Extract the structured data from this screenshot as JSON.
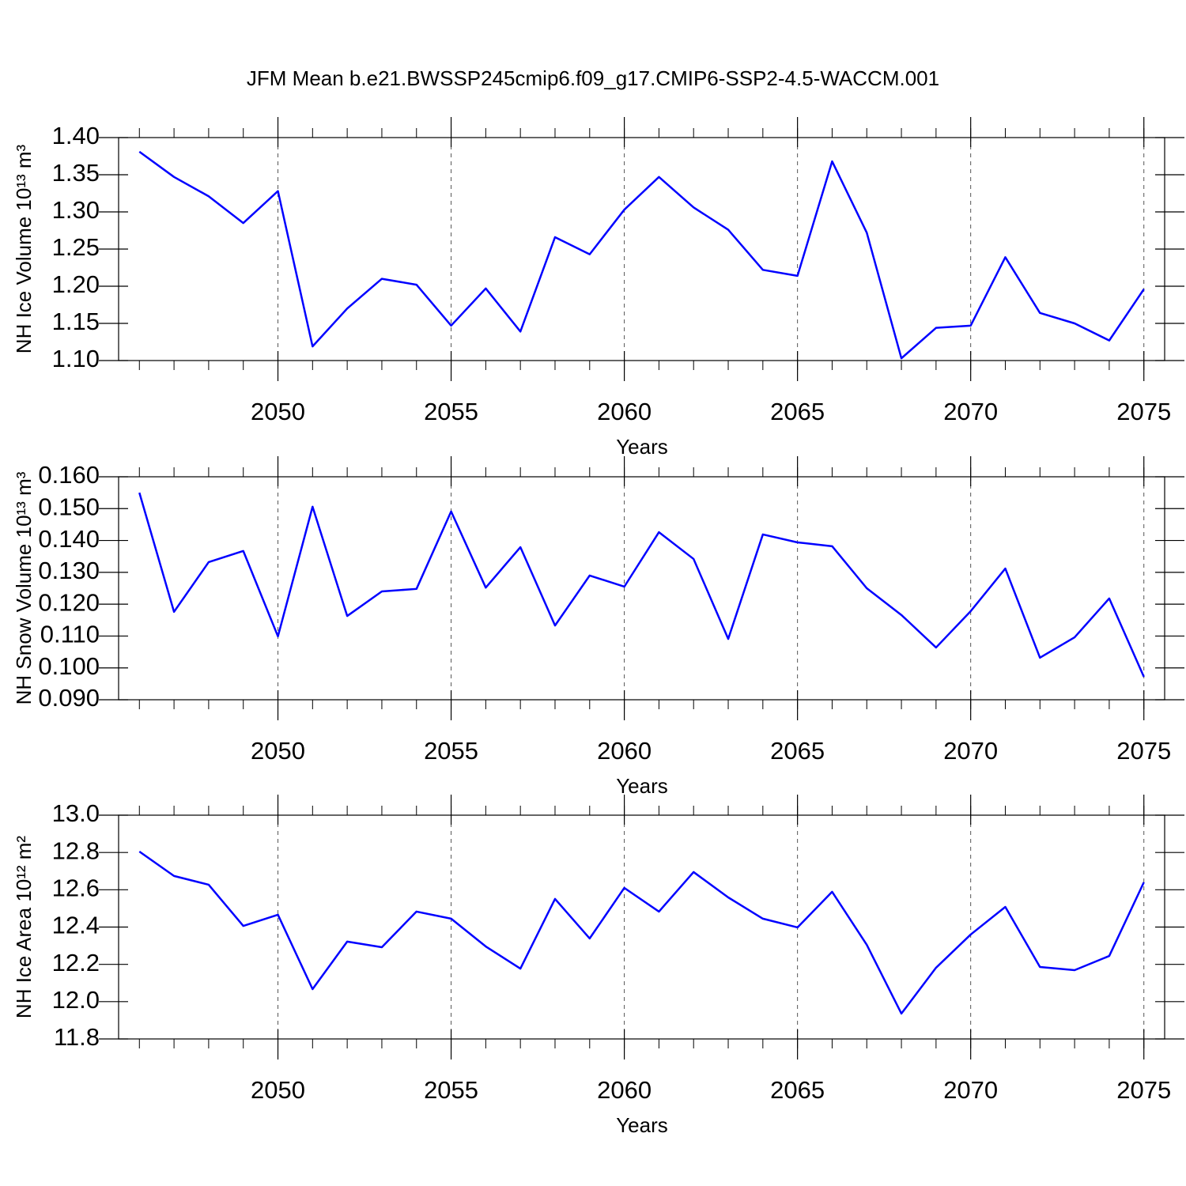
{
  "chart_data": [
    {
      "type": "line",
      "title": "JFM Mean b.e21.BWSSP245cmip6.f09_g17.CMIP6-SSP2-4.5-WACCM.001",
      "ylabel": "NH Ice Volume 10¹³ m³",
      "xlabel": "Years",
      "color": "#0000ff",
      "xgrid": true,
      "x": [
        2046,
        2047,
        2048,
        2049,
        2050,
        2051,
        2052,
        2053,
        2054,
        2055,
        2056,
        2057,
        2058,
        2059,
        2060,
        2061,
        2062,
        2063,
        2064,
        2065,
        2066,
        2067,
        2068,
        2069,
        2070,
        2071,
        2072,
        2073,
        2074,
        2075
      ],
      "values": [
        1.381,
        1.347,
        1.321,
        1.285,
        1.328,
        1.119,
        1.17,
        1.21,
        1.202,
        1.147,
        1.197,
        1.139,
        1.266,
        1.243,
        1.303,
        1.347,
        1.306,
        1.276,
        1.222,
        1.214,
        1.368,
        1.272,
        1.103,
        1.144,
        1.147,
        1.239,
        1.164,
        1.15,
        1.127,
        1.196
      ],
      "xlim": [
        2045.4,
        2075.6
      ],
      "xticks": [
        2050,
        2055,
        2060,
        2065,
        2070,
        2075
      ],
      "ylim": [
        1.1,
        1.4
      ],
      "yticks": [
        {
          "value": 1.1,
          "label": "1.10"
        },
        1.15,
        {
          "value": 1.2,
          "label": "1.20"
        },
        1.25,
        {
          "value": 1.3,
          "label": "1.30"
        },
        1.35,
        {
          "value": 1.4,
          "label": "1.40"
        }
      ]
    },
    {
      "type": "line",
      "ylabel": "NH Snow Volume 10¹³ m³",
      "xlabel": "Years",
      "color": "#0000ff",
      "xgrid": true,
      "x": [
        2046,
        2047,
        2048,
        2049,
        2050,
        2051,
        2052,
        2053,
        2054,
        2055,
        2056,
        2057,
        2058,
        2059,
        2060,
        2061,
        2062,
        2063,
        2064,
        2065,
        2066,
        2067,
        2068,
        2069,
        2070,
        2071,
        2072,
        2073,
        2074,
        2075
      ],
      "values": [
        0.155,
        0.1176,
        0.1332,
        0.1367,
        0.1099,
        0.1506,
        0.1163,
        0.124,
        0.1248,
        0.1491,
        0.1252,
        0.1379,
        0.1133,
        0.129,
        0.1255,
        0.1426,
        0.1342,
        0.1091,
        0.1419,
        0.1394,
        0.1382,
        0.125,
        0.1166,
        0.1064,
        0.1178,
        0.1312,
        0.1032,
        0.1096,
        0.1218,
        0.0972
      ],
      "xlim": [
        2045.4,
        2075.6
      ],
      "xticks": [
        2050,
        2055,
        2060,
        2065,
        2070,
        2075
      ],
      "ylim": [
        0.09,
        0.16
      ],
      "yticks": [
        {
          "value": 0.09,
          "label": "0.090"
        },
        {
          "value": 0.1,
          "label": "0.100"
        },
        {
          "value": 0.11,
          "label": "0.110"
        },
        {
          "value": 0.12,
          "label": "0.120"
        },
        {
          "value": 0.13,
          "label": "0.130"
        },
        {
          "value": 0.14,
          "label": "0.140"
        },
        {
          "value": 0.15,
          "label": "0.150"
        },
        {
          "value": 0.16,
          "label": "0.160"
        }
      ]
    },
    {
      "type": "line",
      "ylabel": "NH Ice Area 10¹² m²",
      "xlabel": "Years",
      "color": "#0000ff",
      "xgrid": true,
      "x": [
        2046,
        2047,
        2048,
        2049,
        2050,
        2051,
        2052,
        2053,
        2054,
        2055,
        2056,
        2057,
        2058,
        2059,
        2060,
        2061,
        2062,
        2063,
        2064,
        2065,
        2066,
        2067,
        2068,
        2069,
        2070,
        2071,
        2072,
        2073,
        2074,
        2075
      ],
      "values": [
        12.805,
        12.674,
        12.627,
        12.406,
        12.466,
        12.067,
        12.322,
        12.292,
        12.483,
        12.445,
        12.296,
        12.177,
        12.551,
        12.339,
        12.61,
        12.483,
        12.695,
        12.559,
        12.445,
        12.398,
        12.589,
        12.305,
        11.936,
        12.182,
        12.36,
        12.508,
        12.186,
        12.169,
        12.245,
        12.64
      ],
      "xlim": [
        2045.4,
        2075.6
      ],
      "xticks": [
        2050,
        2055,
        2060,
        2065,
        2070,
        2075
      ],
      "ylim": [
        11.8,
        13.0
      ],
      "yticks": [
        11.8,
        {
          "value": 12.0,
          "label": "12.0"
        },
        12.2,
        12.4,
        12.6,
        12.8,
        {
          "value": 13.0,
          "label": "13.0"
        }
      ]
    }
  ]
}
